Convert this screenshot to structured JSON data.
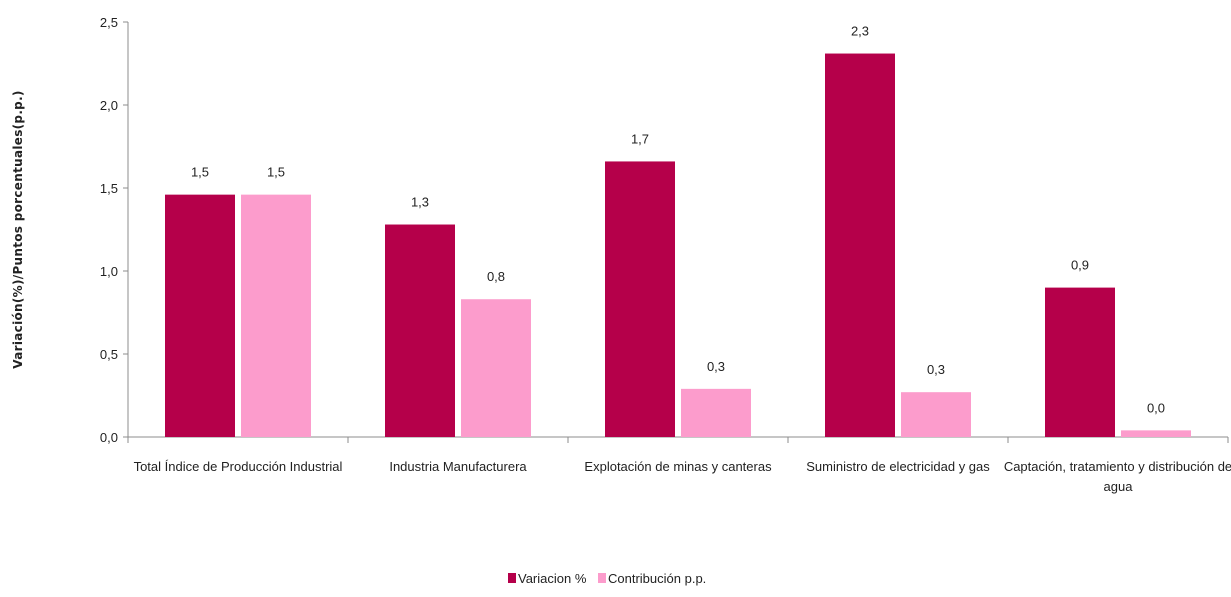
{
  "chart_data": {
    "type": "bar",
    "ylabel": "Variación(%)/Puntos  porcentuales(p.p.)",
    "ylim": [
      0,
      2.5
    ],
    "yticks": [
      "0,0",
      "0,5",
      "1,0",
      "1,5",
      "2,0",
      "2,5"
    ],
    "ytick_values": [
      0,
      0.5,
      1.0,
      1.5,
      2.0,
      2.5
    ],
    "categories": [
      [
        "Total Índice de Producción Industrial"
      ],
      [
        "Industria Manufacturera"
      ],
      [
        "Explotación de minas y canteras"
      ],
      [
        "Suministro de electricidad y gas"
      ],
      [
        "Captación, tratamiento y distribución de",
        "agua"
      ]
    ],
    "series": [
      {
        "name": "Variacion %",
        "color": "#b5004a",
        "values": [
          1.46,
          1.28,
          1.66,
          2.31,
          0.9
        ],
        "labels": [
          "1,5",
          "1,3",
          "1,7",
          "2,3",
          "0,9"
        ]
      },
      {
        "name": "Contribución p.p.",
        "color": "#fc9ccc",
        "values": [
          1.46,
          0.83,
          0.29,
          0.27,
          0.04
        ],
        "labels": [
          "1,5",
          "0,8",
          "0,3",
          "0,3",
          "0,0"
        ]
      }
    ],
    "legend_position": "bottom-center",
    "grid": false
  }
}
